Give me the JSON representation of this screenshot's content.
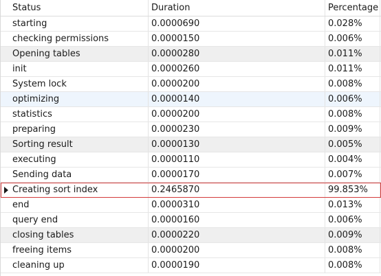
{
  "columns": {
    "status": "Status",
    "duration": "Duration",
    "percentage": "Percentage"
  },
  "rows": [
    {
      "status": "starting",
      "duration": "0.0000690",
      "percentage": "0.028%"
    },
    {
      "status": "checking permissions",
      "duration": "0.0000150",
      "percentage": "0.006%"
    },
    {
      "status": "Opening tables",
      "duration": "0.0000280",
      "percentage": "0.011%"
    },
    {
      "status": "init",
      "duration": "0.0000260",
      "percentage": "0.011%"
    },
    {
      "status": "System lock",
      "duration": "0.0000200",
      "percentage": "0.008%"
    },
    {
      "status": "optimizing",
      "duration": "0.0000140",
      "percentage": "0.006%"
    },
    {
      "status": "statistics",
      "duration": "0.0000200",
      "percentage": "0.008%"
    },
    {
      "status": "preparing",
      "duration": "0.0000230",
      "percentage": "0.009%"
    },
    {
      "status": "Sorting result",
      "duration": "0.0000130",
      "percentage": "0.005%"
    },
    {
      "status": "executing",
      "duration": "0.0000110",
      "percentage": "0.004%"
    },
    {
      "status": "Sending data",
      "duration": "0.0000170",
      "percentage": "0.007%"
    },
    {
      "status": "Creating sort index",
      "duration": "0.2465870",
      "percentage": "99.853%"
    },
    {
      "status": "end",
      "duration": "0.0000310",
      "percentage": "0.013%"
    },
    {
      "status": "query end",
      "duration": "0.0000160",
      "percentage": "0.006%"
    },
    {
      "status": "closing tables",
      "duration": "0.0000220",
      "percentage": "0.009%"
    },
    {
      "status": "freeing items",
      "duration": "0.0000200",
      "percentage": "0.008%"
    },
    {
      "status": "cleaning up",
      "duration": "0.0000190",
      "percentage": "0.008%"
    }
  ],
  "selected_row_index": 11,
  "colors": {
    "selection_border": "#d33a3a",
    "row_gray": "#efefef",
    "row_blue": "#eef5fd"
  }
}
